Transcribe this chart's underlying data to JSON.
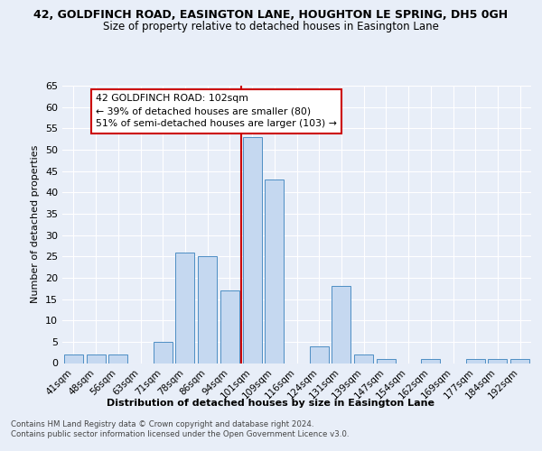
{
  "title1": "42, GOLDFINCH ROAD, EASINGTON LANE, HOUGHTON LE SPRING, DH5 0GH",
  "title2": "Size of property relative to detached houses in Easington Lane",
  "xlabel": "Distribution of detached houses by size in Easington Lane",
  "ylabel": "Number of detached properties",
  "categories": [
    "41sqm",
    "48sqm",
    "56sqm",
    "63sqm",
    "71sqm",
    "78sqm",
    "86sqm",
    "94sqm",
    "101sqm",
    "109sqm",
    "116sqm",
    "124sqm",
    "131sqm",
    "139sqm",
    "147sqm",
    "154sqm",
    "162sqm",
    "169sqm",
    "177sqm",
    "184sqm",
    "192sqm"
  ],
  "values": [
    2,
    2,
    2,
    0,
    5,
    26,
    25,
    17,
    53,
    43,
    0,
    4,
    18,
    2,
    1,
    0,
    1,
    0,
    1,
    1,
    1
  ],
  "bar_color": "#c5d8f0",
  "bar_edge_color": "#4d8ec4",
  "property_line_idx": 8,
  "property_line_color": "#cc0000",
  "annotation_text": "42 GOLDFINCH ROAD: 102sqm\n← 39% of detached houses are smaller (80)\n51% of semi-detached houses are larger (103) →",
  "annotation_box_color": "#cc0000",
  "annotation_bg": "#ffffff",
  "ylim": [
    0,
    65
  ],
  "yticks": [
    0,
    5,
    10,
    15,
    20,
    25,
    30,
    35,
    40,
    45,
    50,
    55,
    60,
    65
  ],
  "footer1": "Contains HM Land Registry data © Crown copyright and database right 2024.",
  "footer2": "Contains public sector information licensed under the Open Government Licence v3.0.",
  "bg_color": "#e8eef8"
}
